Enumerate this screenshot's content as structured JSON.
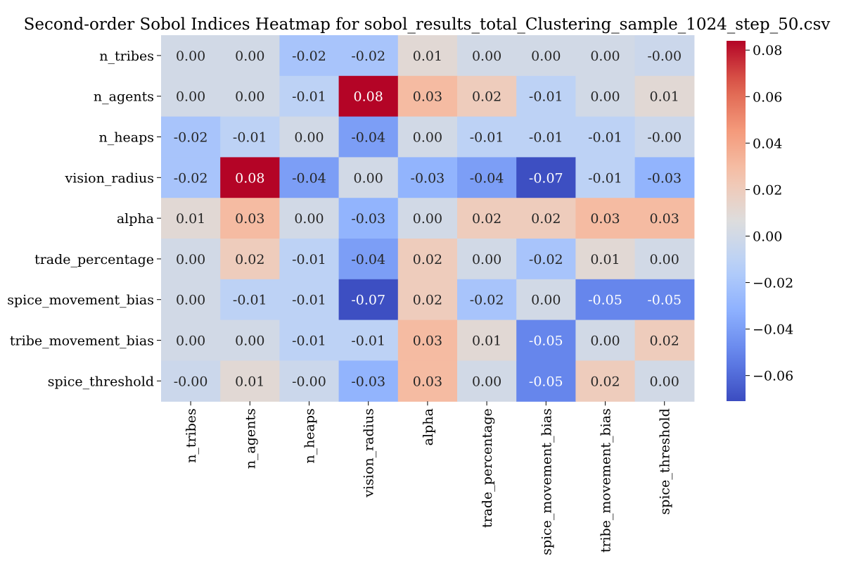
{
  "chart_data": {
    "type": "heatmap",
    "title": "Second-order Sobol Indices Heatmap for sobol_results_total_Clustering_sample_1024_step_50.csv",
    "rows": [
      "n_tribes",
      "n_agents",
      "n_heaps",
      "vision_radius",
      "alpha",
      "trade_percentage",
      "spice_movement_bias",
      "tribe_movement_bias",
      "spice_threshold"
    ],
    "cols": [
      "n_tribes",
      "n_agents",
      "n_heaps",
      "vision_radius",
      "alpha",
      "trade_percentage",
      "spice_movement_bias",
      "tribe_movement_bias",
      "spice_threshold"
    ],
    "values": [
      [
        0.0,
        0.0,
        -0.02,
        -0.02,
        0.01,
        0.0,
        0.0,
        0.0,
        -0.003
      ],
      [
        0.0,
        0.0,
        -0.01,
        0.084,
        0.03,
        0.02,
        -0.01,
        0.0,
        0.01
      ],
      [
        -0.02,
        -0.01,
        0.0,
        -0.04,
        0.0,
        -0.01,
        -0.01,
        -0.01,
        -0.003
      ],
      [
        -0.02,
        0.084,
        -0.04,
        0.0,
        -0.03,
        -0.04,
        -0.07,
        -0.01,
        -0.03
      ],
      [
        0.01,
        0.03,
        0.0,
        -0.03,
        0.0,
        0.02,
        0.02,
        0.03,
        0.03
      ],
      [
        0.0,
        0.02,
        -0.01,
        -0.04,
        0.02,
        0.0,
        -0.02,
        0.01,
        0.0
      ],
      [
        0.0,
        -0.01,
        -0.01,
        -0.07,
        0.02,
        -0.02,
        0.0,
        -0.05,
        -0.05
      ],
      [
        0.0,
        0.0,
        -0.01,
        -0.01,
        0.03,
        0.01,
        -0.05,
        0.0,
        0.02
      ],
      [
        -0.003,
        0.01,
        -0.003,
        -0.03,
        0.03,
        0.0,
        -0.05,
        0.02,
        0.0
      ]
    ],
    "labels": [
      [
        "0.00",
        "0.00",
        "-0.02",
        "-0.02",
        "0.01",
        "0.00",
        "0.00",
        "0.00",
        "-0.00"
      ],
      [
        "0.00",
        "0.00",
        "-0.01",
        "0.08",
        "0.03",
        "0.02",
        "-0.01",
        "0.00",
        "0.01"
      ],
      [
        "-0.02",
        "-0.01",
        "0.00",
        "-0.04",
        "0.00",
        "-0.01",
        "-0.01",
        "-0.01",
        "-0.00"
      ],
      [
        "-0.02",
        "0.08",
        "-0.04",
        "0.00",
        "-0.03",
        "-0.04",
        "-0.07",
        "-0.01",
        "-0.03"
      ],
      [
        "0.01",
        "0.03",
        "0.00",
        "-0.03",
        "0.00",
        "0.02",
        "0.02",
        "0.03",
        "0.03"
      ],
      [
        "0.00",
        "0.02",
        "-0.01",
        "-0.04",
        "0.02",
        "0.00",
        "-0.02",
        "0.01",
        "0.00"
      ],
      [
        "0.00",
        "-0.01",
        "-0.01",
        "-0.07",
        "0.02",
        "-0.02",
        "0.00",
        "-0.05",
        "-0.05"
      ],
      [
        "0.00",
        "0.00",
        "-0.01",
        "-0.01",
        "0.03",
        "0.01",
        "-0.05",
        "0.00",
        "0.02"
      ],
      [
        "-0.00",
        "0.01",
        "-0.00",
        "-0.03",
        "0.03",
        "0.00",
        "-0.05",
        "0.02",
        "0.00"
      ]
    ],
    "colormap": "coolwarm",
    "vmin": -0.071,
    "vmax": 0.084,
    "colorbar_ticks": [
      0.08,
      0.06,
      0.04,
      0.02,
      0.0,
      -0.02,
      -0.04,
      -0.06
    ],
    "colorbar_tick_labels": [
      "0.08",
      "0.06",
      "0.04",
      "0.02",
      "0.00",
      "−0.02",
      "−0.04",
      "−0.06"
    ]
  }
}
